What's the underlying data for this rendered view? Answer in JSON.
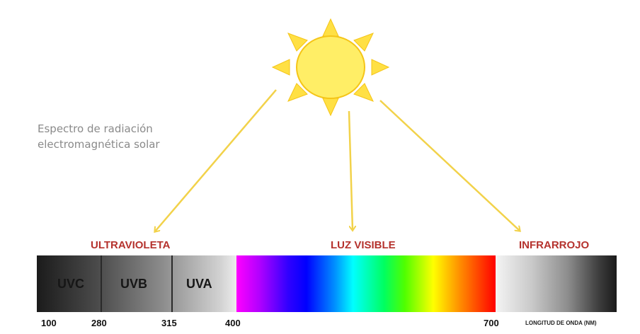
{
  "caption": {
    "line1": "Espectro de radiación",
    "line2": "electromagnética solar"
  },
  "regions": {
    "ultraviolet": "ULTRAVIOLETA",
    "visible": "LUZ VISIBLE",
    "infrared": "INFRARROJO"
  },
  "uv_bands": [
    "UVC",
    "UVB",
    "UVA"
  ],
  "wavelength_ticks": [
    "100",
    "280",
    "315",
    "400",
    "700"
  ],
  "axis_label": "LONGITUD DE ONDA (NM)",
  "colors": {
    "sun_fill": "#ffee66",
    "sun_rays": "#ffe044",
    "arrows": "#f2d24a",
    "region_label": "#b5322d",
    "caption": "#8a8a8a"
  },
  "icons": {
    "sun": "sun-icon"
  }
}
